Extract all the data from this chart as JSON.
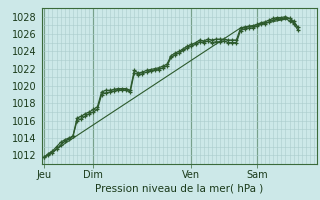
{
  "background_color": "#cce8e8",
  "grid_color": "#aacccc",
  "line_color": "#2d5a2d",
  "marker_color": "#2d5a2d",
  "ylabel_ticks": [
    1012,
    1014,
    1016,
    1018,
    1020,
    1022,
    1024,
    1026,
    1028
  ],
  "ylim": [
    1011.0,
    1029.0
  ],
  "xlabel": "Pression niveau de la mer( hPa )",
  "day_labels": [
    "Jeu",
    "Dim",
    "Ven",
    "Sam"
  ],
  "day_positions": [
    0,
    36,
    108,
    156
  ],
  "xlim": [
    -2,
    200
  ],
  "line1_x": [
    0,
    3,
    6,
    9,
    12,
    15,
    18,
    21,
    24,
    27,
    30,
    33,
    36,
    39,
    42,
    45,
    48,
    51,
    54,
    57,
    60,
    63,
    66,
    69,
    72,
    75,
    78,
    81,
    84,
    87,
    90,
    93,
    96,
    99,
    102,
    105,
    108,
    111,
    114,
    117,
    120,
    123,
    126,
    129,
    132,
    135,
    138,
    141,
    144,
    147,
    150,
    153,
    156,
    159,
    162,
    165,
    168,
    171,
    174,
    177,
    180,
    183,
    186
  ],
  "line1_y": [
    1011.8,
    1012.2,
    1012.5,
    1013.0,
    1013.5,
    1013.8,
    1014.0,
    1014.2,
    1016.3,
    1016.5,
    1016.8,
    1017.0,
    1017.3,
    1017.6,
    1019.3,
    1019.5,
    1019.5,
    1019.6,
    1019.7,
    1019.7,
    1019.7,
    1019.5,
    1021.8,
    1021.5,
    1021.6,
    1021.8,
    1021.9,
    1022.0,
    1022.1,
    1022.3,
    1022.5,
    1023.5,
    1023.8,
    1024.0,
    1024.3,
    1024.6,
    1024.8,
    1025.0,
    1025.3,
    1025.2,
    1025.4,
    1025.3,
    1025.4,
    1025.4,
    1025.4,
    1025.3,
    1025.3,
    1025.3,
    1026.7,
    1026.8,
    1026.9,
    1026.9,
    1027.1,
    1027.3,
    1027.4,
    1027.6,
    1027.8,
    1027.9,
    1027.9,
    1028.0,
    1027.8,
    1027.5,
    1026.8
  ],
  "line2_x": [
    0,
    3,
    6,
    9,
    12,
    15,
    18,
    21,
    24,
    27,
    30,
    33,
    36,
    39,
    42,
    45,
    48,
    51,
    54,
    57,
    60,
    63,
    66,
    69,
    72,
    75,
    78,
    81,
    84,
    87,
    90,
    93,
    96,
    99,
    102,
    105,
    108,
    111,
    114,
    117,
    120,
    123,
    126,
    129,
    132,
    135,
    138,
    141,
    144,
    147,
    150,
    153,
    156,
    159,
    162,
    165,
    168,
    171,
    174,
    177,
    180,
    183,
    186
  ],
  "line2_y": [
    1011.8,
    1012.0,
    1012.3,
    1012.7,
    1013.2,
    1013.6,
    1013.9,
    1014.2,
    1016.0,
    1016.2,
    1016.5,
    1016.8,
    1017.0,
    1017.3,
    1019.0,
    1019.2,
    1019.3,
    1019.4,
    1019.5,
    1019.5,
    1019.5,
    1019.3,
    1021.5,
    1021.3,
    1021.4,
    1021.6,
    1021.7,
    1021.8,
    1021.9,
    1022.1,
    1022.3,
    1023.3,
    1023.6,
    1023.8,
    1024.1,
    1024.4,
    1024.6,
    1024.8,
    1025.1,
    1025.0,
    1025.2,
    1025.0,
    1025.1,
    1025.1,
    1025.2,
    1025.0,
    1025.0,
    1025.0,
    1026.4,
    1026.6,
    1026.7,
    1026.7,
    1026.9,
    1027.1,
    1027.2,
    1027.4,
    1027.6,
    1027.7,
    1027.7,
    1027.8,
    1027.5,
    1027.2,
    1026.5
  ],
  "line3_x": [
    0,
    144,
    180,
    186
  ],
  "line3_y": [
    1011.8,
    1026.7,
    1027.8,
    1026.8
  ]
}
